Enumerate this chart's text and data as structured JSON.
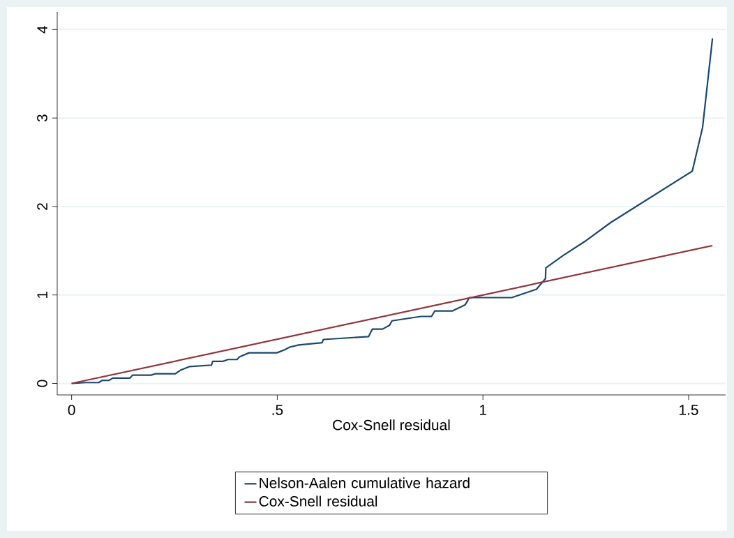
{
  "chart_data": {
    "type": "line",
    "xlabel": "Cox-Snell residual",
    "x": [
      0,
      0.034,
      0.066,
      0.074,
      0.091,
      0.1,
      0.142,
      0.148,
      0.193,
      0.204,
      0.252,
      0.264,
      0.272,
      0.286,
      0.34,
      0.343,
      0.368,
      0.38,
      0.402,
      0.408,
      0.431,
      0.499,
      0.518,
      0.53,
      0.552,
      0.609,
      0.612,
      0.722,
      0.731,
      0.756,
      0.773,
      0.779,
      0.849,
      0.875,
      0.883,
      0.926,
      0.957,
      0.967,
      1.048,
      1.07,
      1.13,
      1.152,
      1.153,
      1.195,
      1.251,
      1.311,
      1.509,
      1.534,
      1.558
    ],
    "series": [
      {
        "name": "Nelson-Aalen cumulative hazard",
        "color": "#1a476f",
        "values": [
          0,
          0.01,
          0.01,
          0.035,
          0.035,
          0.06,
          0.06,
          0.094,
          0.094,
          0.11,
          0.11,
          0.147,
          0.163,
          0.19,
          0.207,
          0.25,
          0.25,
          0.27,
          0.27,
          0.3,
          0.346,
          0.346,
          0.38,
          0.41,
          0.435,
          0.46,
          0.497,
          0.53,
          0.614,
          0.614,
          0.658,
          0.708,
          0.757,
          0.757,
          0.82,
          0.82,
          0.89,
          0.97,
          0.97,
          0.97,
          1.065,
          1.185,
          1.306,
          1.446,
          1.615,
          1.82,
          2.4,
          2.895,
          3.9
        ]
      },
      {
        "name": "Cox-Snell residual",
        "color": "#90353b",
        "x": [
          0,
          1.558
        ],
        "values": [
          0,
          1.558
        ]
      }
    ],
    "xlim": [
      -0.035,
      1.59
    ],
    "ylim": [
      -0.13,
      4.2
    ],
    "xticks": [
      0,
      {
        "value": 0.5,
        "label": ".5"
      },
      1,
      {
        "value": 1.5,
        "label": "1.5"
      }
    ],
    "yticks": [
      0,
      1,
      2,
      3,
      4
    ],
    "grid": "y",
    "legend": "bottom",
    "marker": "none",
    "line_style": "solid"
  }
}
